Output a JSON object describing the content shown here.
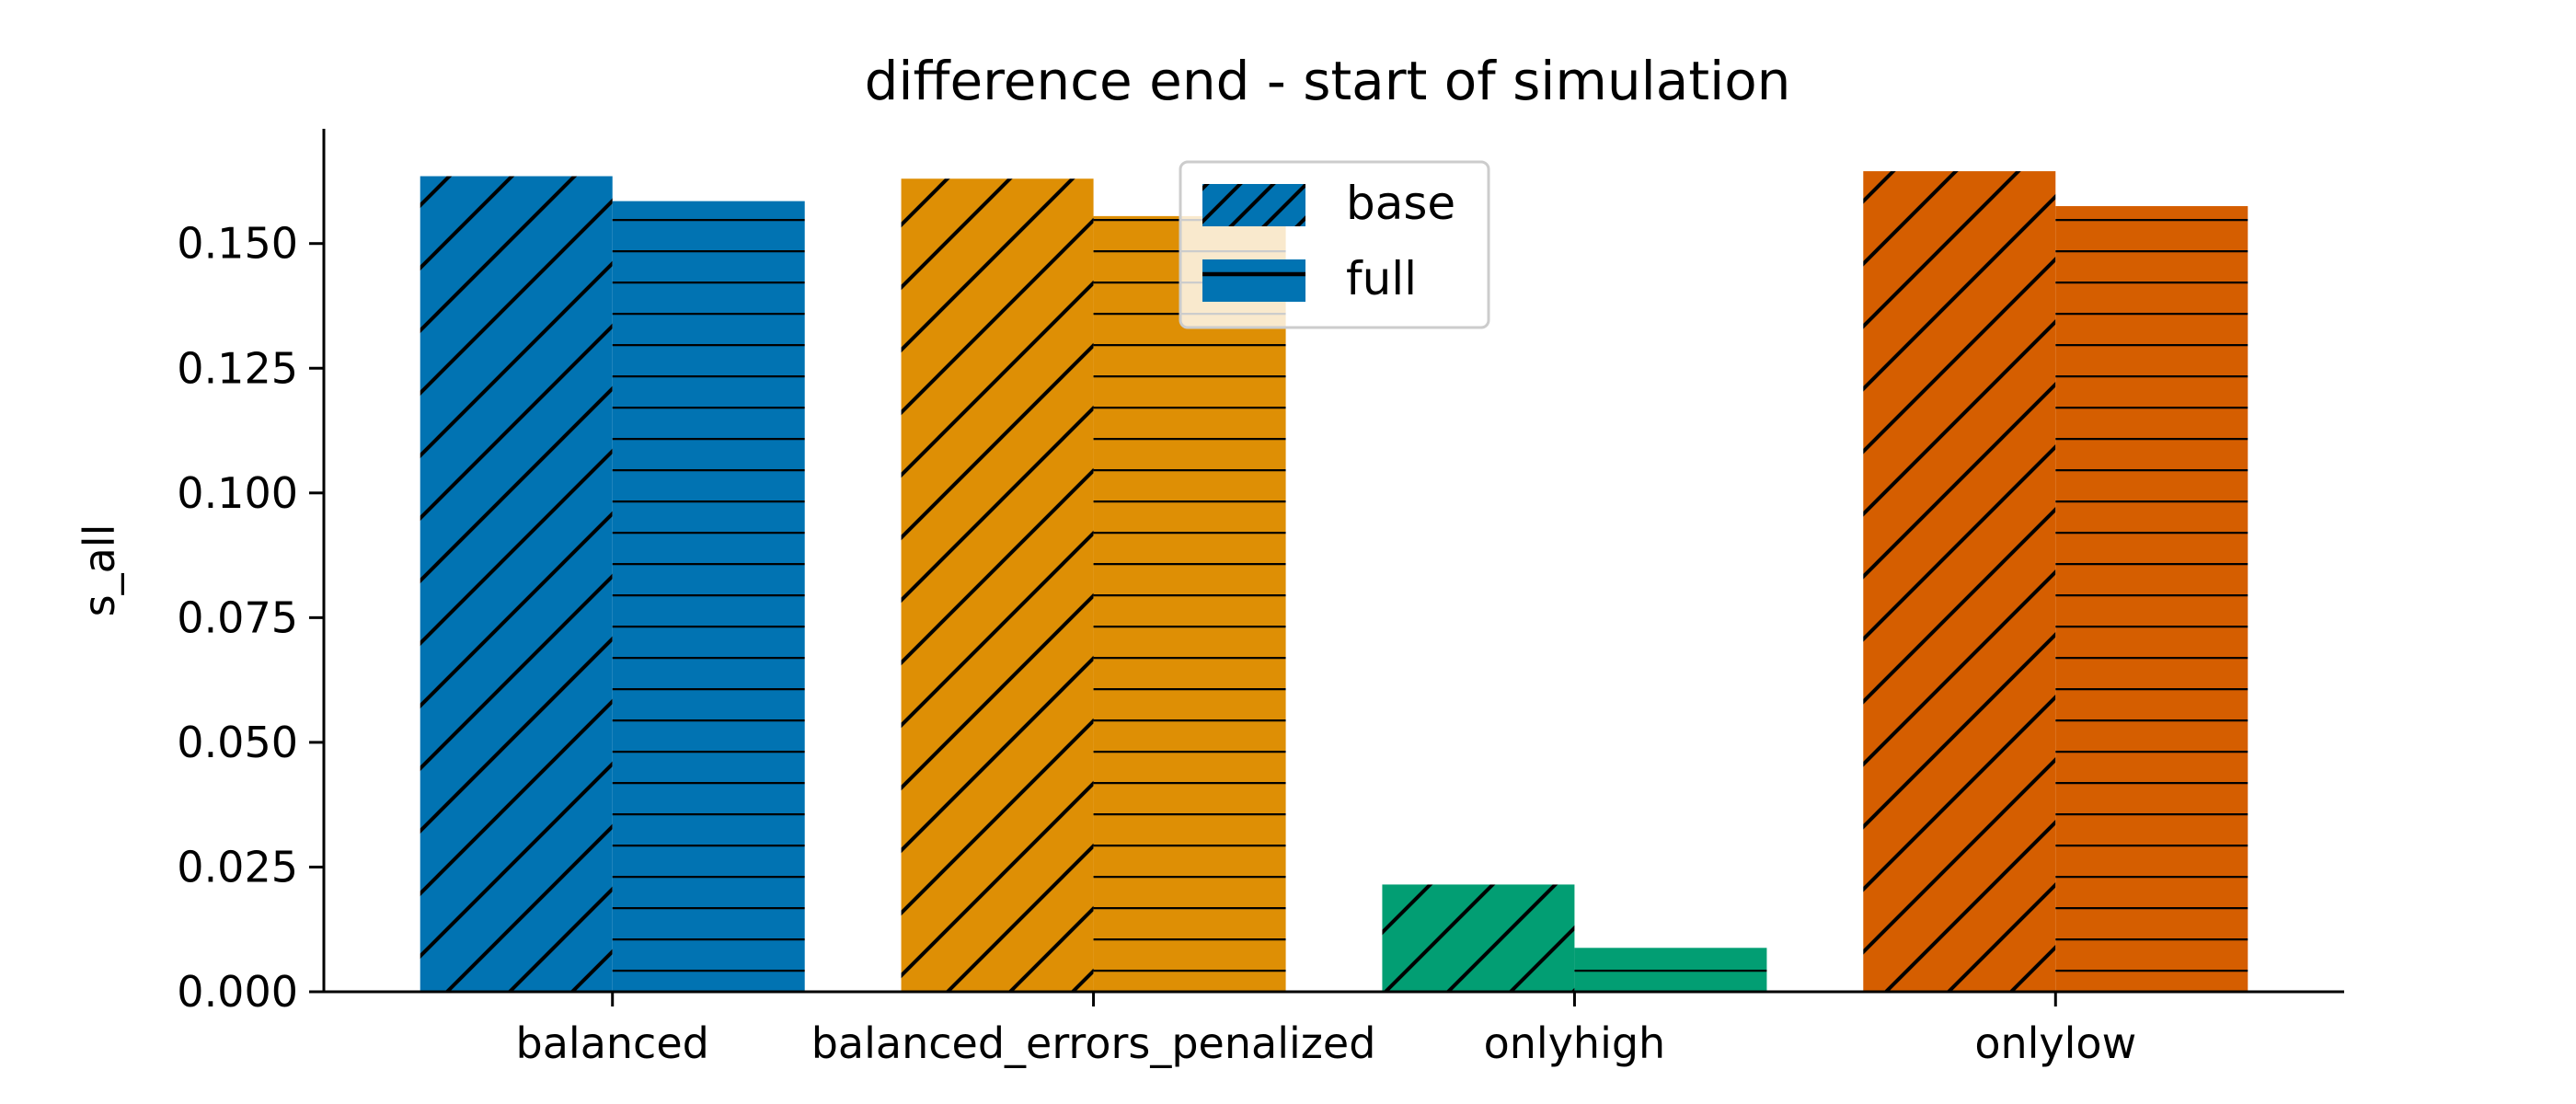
{
  "chart_data": {
    "type": "bar",
    "title": "difference end - start of simulation",
    "xlabel": "",
    "ylabel": "s_all",
    "categories": [
      "balanced",
      "balanced_errors_penalized",
      "onlyhigh",
      "onlylow"
    ],
    "category_colors": [
      "#0173b2",
      "#de8f05",
      "#029e73",
      "#d55e00"
    ],
    "series": [
      {
        "name": "base",
        "values": [
          0.1635,
          0.163,
          0.0215,
          0.1645
        ],
        "hatch": "diagonal"
      },
      {
        "name": "full",
        "values": [
          0.1585,
          0.1555,
          0.0088,
          0.1575
        ],
        "hatch": "horizontal"
      }
    ],
    "ylim": [
      0,
      0.173
    ],
    "yticks": [
      0.0,
      0.025,
      0.05,
      0.075,
      0.1,
      0.125,
      0.15
    ],
    "ytick_labels": [
      "0.000",
      "0.025",
      "0.050",
      "0.075",
      "0.100",
      "0.125",
      "0.150"
    ],
    "legend": {
      "placement": "upper-center",
      "swatch_color": "#0173b2"
    },
    "grid": false
  }
}
